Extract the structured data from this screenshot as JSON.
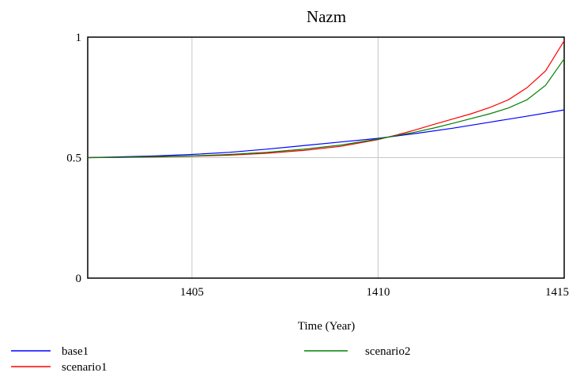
{
  "chart_data": {
    "type": "line",
    "title": "Nazm",
    "xlabel": "Time (Year)",
    "ylabel": "",
    "xlim": [
      1402.2,
      1415
    ],
    "ylim": [
      0,
      1
    ],
    "xticks": [
      1405,
      1410,
      1415
    ],
    "xtick_labels": [
      "1405",
      "1410",
      "1415"
    ],
    "yticks": [
      0,
      0.5,
      1
    ],
    "ytick_labels": [
      "0",
      "0.5",
      "1"
    ],
    "grid": true,
    "legend_position": "bottom",
    "colors": {
      "base1": "#0000ff",
      "scenario1": "#ff0000",
      "scenario2": "#008000"
    },
    "series": [
      {
        "name": "base1",
        "x": [
          1402.2,
          1403,
          1404,
          1405,
          1406,
          1407,
          1408,
          1409,
          1410,
          1411,
          1412,
          1413,
          1414,
          1415
        ],
        "values": [
          0.5,
          0.503,
          0.507,
          0.513,
          0.522,
          0.535,
          0.55,
          0.565,
          0.58,
          0.6,
          0.622,
          0.647,
          0.672,
          0.698
        ]
      },
      {
        "name": "scenario1",
        "x": [
          1402.2,
          1403,
          1404,
          1405,
          1406,
          1407,
          1408,
          1409,
          1410,
          1410.5,
          1411,
          1411.5,
          1412,
          1412.5,
          1413,
          1413.5,
          1414,
          1414.5,
          1415
        ],
        "values": [
          0.5,
          0.501,
          0.503,
          0.506,
          0.51,
          0.518,
          0.53,
          0.547,
          0.575,
          0.594,
          0.615,
          0.638,
          0.66,
          0.682,
          0.708,
          0.74,
          0.79,
          0.86,
          0.985
        ]
      },
      {
        "name": "scenario2",
        "x": [
          1402.2,
          1403,
          1404,
          1405,
          1406,
          1407,
          1408,
          1409,
          1410,
          1410.5,
          1411,
          1411.5,
          1412,
          1412.5,
          1413,
          1413.5,
          1414,
          1414.5,
          1415
        ],
        "values": [
          0.5,
          0.501,
          0.504,
          0.507,
          0.513,
          0.522,
          0.535,
          0.552,
          0.577,
          0.592,
          0.606,
          0.623,
          0.642,
          0.662,
          0.682,
          0.706,
          0.74,
          0.8,
          0.91
        ]
      }
    ]
  }
}
